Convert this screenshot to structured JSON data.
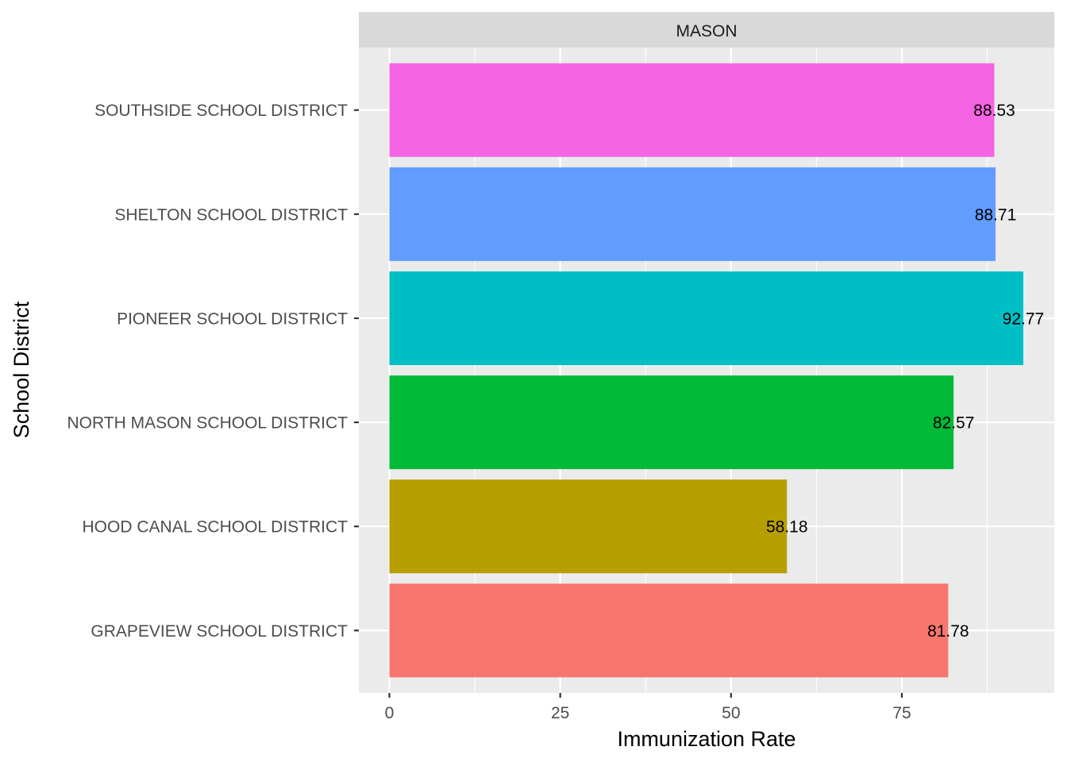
{
  "chart_data": {
    "type": "bar",
    "orientation": "horizontal",
    "facet_label": "MASON",
    "xlabel": "Immunization Rate",
    "ylabel": "School District",
    "xlim": [
      0,
      97
    ],
    "x_ticks": [
      0,
      25,
      50,
      75
    ],
    "grid": true,
    "categories": [
      "GRAPEVIEW SCHOOL DISTRICT",
      "HOOD CANAL SCHOOL DISTRICT",
      "NORTH MASON SCHOOL DISTRICT",
      "PIONEER SCHOOL DISTRICT",
      "SHELTON SCHOOL DISTRICT",
      "SOUTHSIDE SCHOOL DISTRICT"
    ],
    "values": [
      81.78,
      58.18,
      82.57,
      92.77,
      88.71,
      88.53
    ],
    "value_labels": [
      "81.78",
      "58.18",
      "82.57",
      "92.77",
      "88.71",
      "88.53"
    ],
    "colors": [
      "#F8766D",
      "#B79F00",
      "#00BA38",
      "#00BFC4",
      "#619CFF",
      "#F564E3"
    ],
    "panel_background": "#EBEBEB",
    "strip_background": "#D9D9D9",
    "gridline_color": "#FFFFFF"
  }
}
